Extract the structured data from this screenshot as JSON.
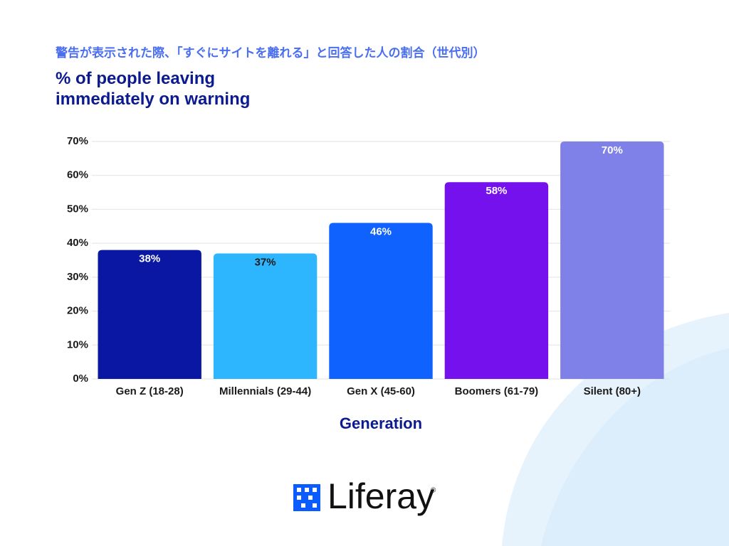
{
  "chart_data": {
    "type": "bar",
    "subtitle": "警告が表示された際、「すぐにサイトを離れる」と回答した人の割合（世代別）",
    "title": "% of people leaving immediately on warning",
    "x_label": "Generation",
    "categories": [
      "Gen Z (18-28)",
      "Millennials (29-44)",
      "Gen X (45-60)",
      "Boomers (61-79)",
      "Silent (80+)"
    ],
    "values": [
      38,
      37,
      46,
      58,
      70
    ],
    "value_labels": [
      "38%",
      "37%",
      "46%",
      "58%",
      "70%"
    ],
    "colors": [
      "#0a17a3",
      "#2db6fd",
      "#0f62fe",
      "#7511ec",
      "#7f80e8"
    ],
    "value_label_colors": [
      "#ffffff",
      "#1a1a1a",
      "#ffffff",
      "#ffffff",
      "#ffffff"
    ],
    "ylim": [
      0,
      70
    ],
    "yticks": [
      {
        "value": 0,
        "label": "0%"
      },
      {
        "value": 10,
        "label": "10%"
      },
      {
        "value": 20,
        "label": "20%"
      },
      {
        "value": 30,
        "label": "30%"
      },
      {
        "value": 40,
        "label": "40%"
      },
      {
        "value": 50,
        "label": "50%"
      },
      {
        "value": 60,
        "label": "60%"
      },
      {
        "value": 70,
        "label": "70%"
      }
    ],
    "grid": true
  },
  "logo": {
    "text": "Liferay",
    "mark": "®"
  }
}
